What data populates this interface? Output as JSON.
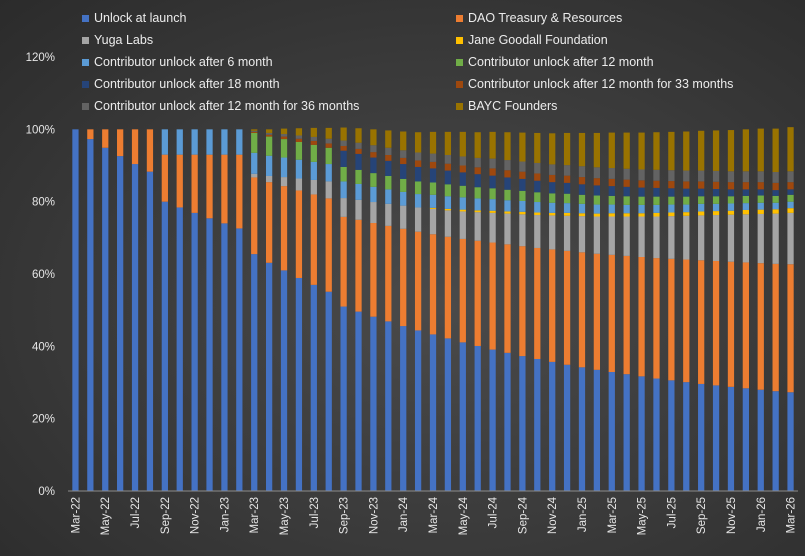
{
  "chart_data": {
    "type": "bar",
    "stacked": true,
    "title": "",
    "xlabel": "",
    "ylabel": "",
    "ylim": [
      0,
      120
    ],
    "yticks": [
      "0%",
      "20%",
      "40%",
      "60%",
      "80%",
      "100%",
      "120%"
    ],
    "ytick_values": [
      0,
      20,
      40,
      60,
      80,
      100,
      120
    ],
    "grid": false,
    "legend_position": "top",
    "categories": [
      "Mar-22",
      "Apr-22",
      "May-22",
      "Jun-22",
      "Jul-22",
      "Aug-22",
      "Sep-22",
      "Oct-22",
      "Nov-22",
      "Dec-22",
      "Jan-23",
      "Feb-23",
      "Mar-23",
      "Apr-23",
      "May-23",
      "Jun-23",
      "Jul-23",
      "Aug-23",
      "Sep-23",
      "Oct-23",
      "Nov-23",
      "Dec-23",
      "Jan-24",
      "Feb-24",
      "Mar-24",
      "Apr-24",
      "May-24",
      "Jun-24",
      "Jul-24",
      "Aug-24",
      "Sep-24",
      "Oct-24",
      "Nov-24",
      "Dec-24",
      "Jan-25",
      "Feb-25",
      "Mar-25",
      "Apr-25",
      "May-25",
      "Jun-25",
      "Jul-25",
      "Aug-25",
      "Sep-25",
      "Oct-25",
      "Nov-25",
      "Dec-25",
      "Jan-26",
      "Feb-26",
      "Mar-26"
    ],
    "x_tick_labels": [
      "Mar-22",
      "May-22",
      "Jul-22",
      "Sep-22",
      "Nov-22",
      "Jan-23",
      "Mar-23",
      "May-23",
      "Jul-23",
      "Sep-23",
      "Nov-23",
      "Jan-24",
      "Mar-24",
      "May-24",
      "Jul-24",
      "Sep-24",
      "Nov-24",
      "Jan-25",
      "Mar-25",
      "May-25",
      "Jul-25",
      "Sep-25",
      "Nov-25",
      "Jan-26",
      "Mar-26"
    ],
    "series": [
      {
        "name": "Unlock at launch",
        "color": "#4472C4",
        "values": [
          100,
          97.3,
          94.9,
          92.6,
          90.4,
          88.3,
          80.0,
          78.4,
          76.9,
          75.4,
          74.0,
          72.6,
          65.5,
          63.1,
          61.0,
          58.9,
          57.0,
          55.1,
          51.0,
          49.6,
          48.2,
          46.9,
          45.6,
          44.4,
          43.3,
          42.2,
          41.1,
          40.1,
          39.1,
          38.2,
          37.3,
          36.5,
          35.7,
          34.9,
          34.2,
          33.5,
          32.9,
          32.3,
          31.7,
          31.1,
          30.6,
          30.1,
          29.6,
          29.2,
          28.8,
          28.4,
          28.0,
          27.6,
          27.3
        ]
      },
      {
        "name": "DAO Treasury & Resources",
        "color": "#ED7D31",
        "values": [
          0,
          2.7,
          5.1,
          7.4,
          9.6,
          11.7,
          13.0,
          14.6,
          16.1,
          17.6,
          19.0,
          20.4,
          21.2,
          22.3,
          23.3,
          24.2,
          25.0,
          25.8,
          24.8,
          25.4,
          25.9,
          26.4,
          26.9,
          27.3,
          27.7,
          28.1,
          28.6,
          29.1,
          29.6,
          30.0,
          30.4,
          30.7,
          31.1,
          31.5,
          31.8,
          32.1,
          32.4,
          32.7,
          33.0,
          33.3,
          33.6,
          33.9,
          34.2,
          34.4,
          34.6,
          34.8,
          35.0,
          35.2,
          35.4
        ]
      },
      {
        "name": "Yuga Labs",
        "color": "#A5A5A5",
        "values": [
          0,
          0,
          0,
          0,
          0,
          0,
          0,
          0,
          0,
          0,
          0,
          0,
          1.0,
          1.7,
          2.5,
          3.3,
          4.0,
          4.7,
          5.2,
          5.5,
          5.8,
          6.1,
          6.4,
          6.7,
          7.0,
          7.3,
          7.6,
          7.9,
          8.2,
          8.5,
          8.8,
          9.1,
          9.4,
          9.7,
          10.0,
          10.3,
          10.6,
          10.9,
          11.2,
          11.5,
          11.8,
          12.1,
          12.4,
          12.7,
          13.0,
          13.3,
          13.6,
          13.9,
          14.2
        ]
      },
      {
        "name": "Jane Goodall Foundation",
        "color": "#FFC000",
        "values": [
          0,
          0,
          0,
          0,
          0,
          0,
          0,
          0,
          0,
          0,
          0,
          0,
          0,
          0,
          0,
          0,
          0,
          0,
          0,
          0,
          0,
          0,
          0,
          0,
          0.3,
          0.4,
          0.5,
          0.5,
          0.6,
          0.6,
          0.7,
          0.7,
          0.7,
          0.8,
          0.8,
          0.8,
          0.9,
          0.9,
          0.9,
          1.0,
          1.0,
          1.0,
          1.1,
          1.1,
          1.1,
          1.2,
          1.2,
          1.2,
          1.3
        ]
      },
      {
        "name": "Contributor unlock after 6 month",
        "color": "#5B9BD5",
        "values": [
          0,
          0,
          0,
          0,
          0,
          0,
          7.0,
          7.0,
          7.0,
          7.0,
          7.0,
          7.0,
          5.8,
          5.6,
          5.4,
          5.2,
          5.0,
          4.8,
          4.6,
          4.4,
          4.2,
          4.0,
          3.8,
          3.7,
          3.6,
          3.5,
          3.4,
          3.3,
          3.2,
          3.1,
          3.0,
          2.9,
          2.8,
          2.7,
          2.6,
          2.5,
          2.4,
          2.3,
          2.3,
          2.2,
          2.2,
          2.1,
          2.1,
          2.0,
          2.0,
          1.9,
          1.9,
          1.8,
          1.8
        ]
      },
      {
        "name": "Contributor unlock after 12 month",
        "color": "#70AD47",
        "values": [
          0,
          0,
          0,
          0,
          0,
          0,
          0,
          0,
          0,
          0,
          0,
          0,
          5.5,
          5.3,
          5.1,
          4.9,
          4.7,
          4.5,
          4.0,
          3.9,
          3.8,
          3.7,
          3.6,
          3.5,
          3.4,
          3.3,
          3.2,
          3.1,
          3.0,
          2.9,
          2.8,
          2.7,
          2.6,
          2.6,
          2.5,
          2.5,
          2.4,
          2.4,
          2.3,
          2.3,
          2.2,
          2.2,
          2.1,
          2.1,
          2.0,
          2.0,
          2.0,
          1.9,
          1.9
        ]
      },
      {
        "name": "Contributor unlock after 18 month",
        "color": "#264478",
        "values": [
          0,
          0,
          0,
          0,
          0,
          0,
          0,
          0,
          0,
          0,
          0,
          0,
          0,
          0,
          0,
          0,
          0,
          0,
          4.5,
          4.4,
          4.3,
          4.2,
          4.1,
          4.0,
          3.9,
          3.8,
          3.7,
          3.6,
          3.5,
          3.4,
          3.3,
          3.2,
          3.1,
          3.0,
          2.9,
          2.8,
          2.7,
          2.6,
          2.5,
          2.4,
          2.3,
          2.2,
          2.1,
          2.0,
          1.9,
          1.8,
          1.7,
          1.6,
          1.5
        ]
      },
      {
        "name": "Contributor unlock after 12 month for 33 months",
        "color": "#9E480E",
        "values": [
          0,
          0,
          0,
          0,
          0,
          0,
          0,
          0,
          0,
          0,
          0,
          0,
          0.3,
          0.5,
          0.7,
          0.9,
          1.1,
          1.2,
          1.3,
          1.4,
          1.5,
          1.6,
          1.7,
          1.8,
          1.8,
          1.9,
          1.9,
          1.9,
          2.0,
          2.0,
          2.0,
          2.0,
          2.0,
          2.0,
          2.0,
          2.0,
          2.0,
          2.0,
          2.0,
          2.0,
          2.0,
          2.0,
          2.0,
          2.0,
          2.0,
          2.0,
          2.0,
          2.0,
          2.0
        ]
      },
      {
        "name": "Contributor unlock after 12 month for 36 months",
        "color": "#636363",
        "values": [
          0,
          0,
          0,
          0,
          0,
          0,
          0,
          0,
          0,
          0,
          0,
          0,
          0.3,
          0.5,
          0.7,
          0.9,
          1.1,
          1.3,
          1.5,
          1.7,
          1.9,
          2.0,
          2.1,
          2.2,
          2.3,
          2.4,
          2.5,
          2.6,
          2.7,
          2.8,
          2.8,
          2.9,
          2.9,
          2.9,
          3.0,
          3.0,
          3.0,
          3.0,
          3.0,
          3.0,
          3.0,
          3.0,
          3.0,
          3.0,
          3.0,
          3.0,
          3.0,
          3.0,
          3.0
        ]
      },
      {
        "name": "BAYC Founders",
        "color": "#997300",
        "values": [
          0,
          0,
          0,
          0,
          0,
          0,
          0,
          0,
          0,
          0,
          0,
          0,
          0.4,
          1.0,
          1.5,
          2.0,
          2.5,
          3.0,
          3.6,
          4.0,
          4.4,
          4.8,
          5.2,
          5.6,
          6.0,
          6.4,
          6.8,
          7.1,
          7.4,
          7.7,
          8.0,
          8.3,
          8.6,
          8.9,
          9.2,
          9.5,
          9.8,
          10.0,
          10.2,
          10.4,
          10.6,
          10.8,
          11.0,
          11.2,
          11.4,
          11.6,
          11.8,
          12.0,
          12.2
        ]
      }
    ]
  }
}
